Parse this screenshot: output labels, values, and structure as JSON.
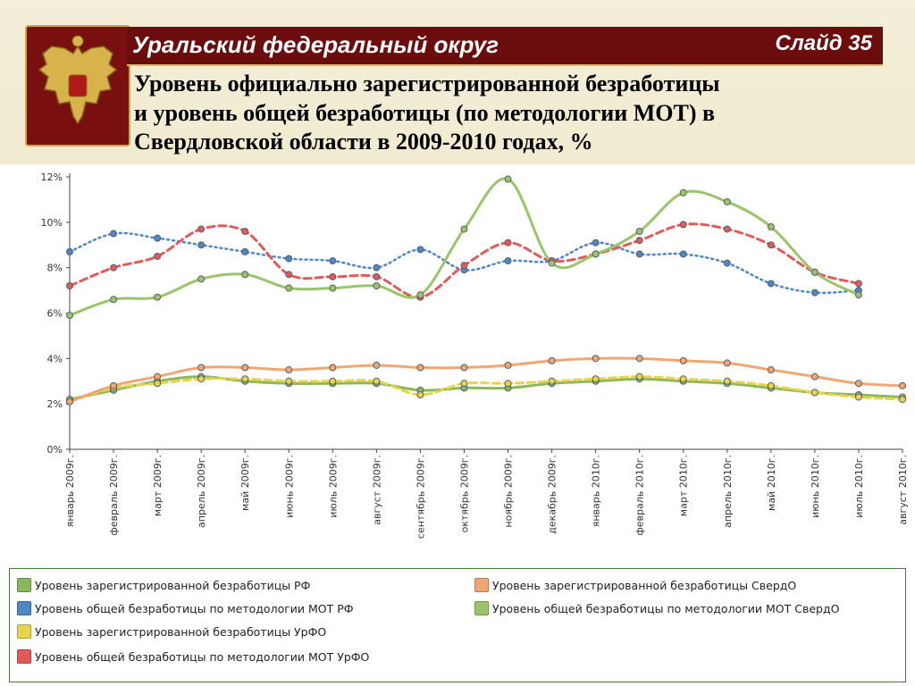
{
  "header": {
    "title": "Уральский федеральный округ",
    "slide": "Слайд 35"
  },
  "subtitle": {
    "line1": "Уровень официально зарегистрированной безработицы",
    "line2": "и уровень общей безработицы (по методологии МОТ) в",
    "line3": "Свердловской области в 2009-2010 годах, %"
  },
  "chart_data": {
    "type": "line",
    "title": "",
    "xlabel": "",
    "ylabel": "",
    "ylim": [
      0,
      12
    ],
    "y_ticks": [
      "0%",
      "2%",
      "4%",
      "6%",
      "8%",
      "10%",
      "12%"
    ],
    "grid": false,
    "legend_position": "bottom",
    "categories": [
      "январь 2009г.",
      "февраль 2009г.",
      "март 2009г.",
      "апрель 2009г.",
      "май 2009г.",
      "июнь 2009г.",
      "июль 2009г.",
      "август 2009г.",
      "сентябрь 2009г.",
      "октябрь 2009г.",
      "ноябрь 2009г.",
      "декабрь 2009г.",
      "январь 2010г.",
      "февраль 2010г.",
      "март 2010г.",
      "апрель 2010г.",
      "май 2010г.",
      "июнь 2010г.",
      "июль 2010г.",
      "август 2010г."
    ],
    "series": [
      {
        "name": "Уровень зарегистрированной безработицы РФ",
        "color": "#8ab85a",
        "style": "solid",
        "values": [
          2.2,
          2.6,
          3.0,
          3.2,
          3.0,
          2.9,
          2.9,
          2.9,
          2.6,
          2.7,
          2.7,
          2.9,
          3.0,
          3.1,
          3.0,
          2.9,
          2.7,
          2.5,
          2.4,
          2.3
        ]
      },
      {
        "name": "Уровень общей безработицы по методологии МОТ РФ",
        "color": "#4f86c6",
        "style": "dotted",
        "values": [
          8.7,
          9.5,
          9.3,
          9.0,
          8.7,
          8.4,
          8.3,
          8.0,
          8.8,
          7.9,
          8.3,
          8.3,
          9.1,
          8.6,
          8.6,
          8.2,
          7.3,
          6.9,
          7.0,
          null
        ]
      },
      {
        "name": "Уровень зарегистрированной безработицы УрФО",
        "color": "#e8d44a",
        "style": "dashed",
        "values": [
          2.1,
          2.7,
          2.9,
          3.1,
          3.1,
          3.0,
          3.0,
          3.0,
          2.4,
          2.9,
          2.9,
          3.0,
          3.1,
          3.2,
          3.1,
          3.0,
          2.8,
          2.5,
          2.3,
          2.2
        ]
      },
      {
        "name": "Уровень общей безработицы по методологии МОТ УрФО",
        "color": "#e35a5a",
        "style": "dashed",
        "values": [
          7.2,
          8.0,
          8.5,
          9.7,
          9.6,
          7.7,
          7.6,
          7.6,
          6.7,
          8.1,
          9.1,
          8.3,
          8.6,
          9.2,
          9.9,
          9.7,
          9.0,
          7.8,
          7.3,
          null
        ]
      },
      {
        "name": "Уровень зарегистрированной безработицы  СвердО",
        "color": "#f2a672",
        "style": "solid",
        "values": [
          2.1,
          2.8,
          3.2,
          3.6,
          3.6,
          3.5,
          3.6,
          3.7,
          3.6,
          3.6,
          3.7,
          3.9,
          4.0,
          4.0,
          3.9,
          3.8,
          3.5,
          3.2,
          2.9,
          2.8
        ]
      },
      {
        "name": "Уровень общей безработицы по методологии МОТ  СвердО",
        "color": "#9cc46a",
        "style": "solid",
        "values": [
          5.9,
          6.6,
          6.7,
          7.5,
          7.7,
          7.1,
          7.1,
          7.2,
          6.8,
          9.7,
          11.9,
          8.2,
          8.6,
          9.6,
          11.3,
          10.9,
          9.8,
          7.8,
          6.8,
          null
        ]
      }
    ]
  }
}
